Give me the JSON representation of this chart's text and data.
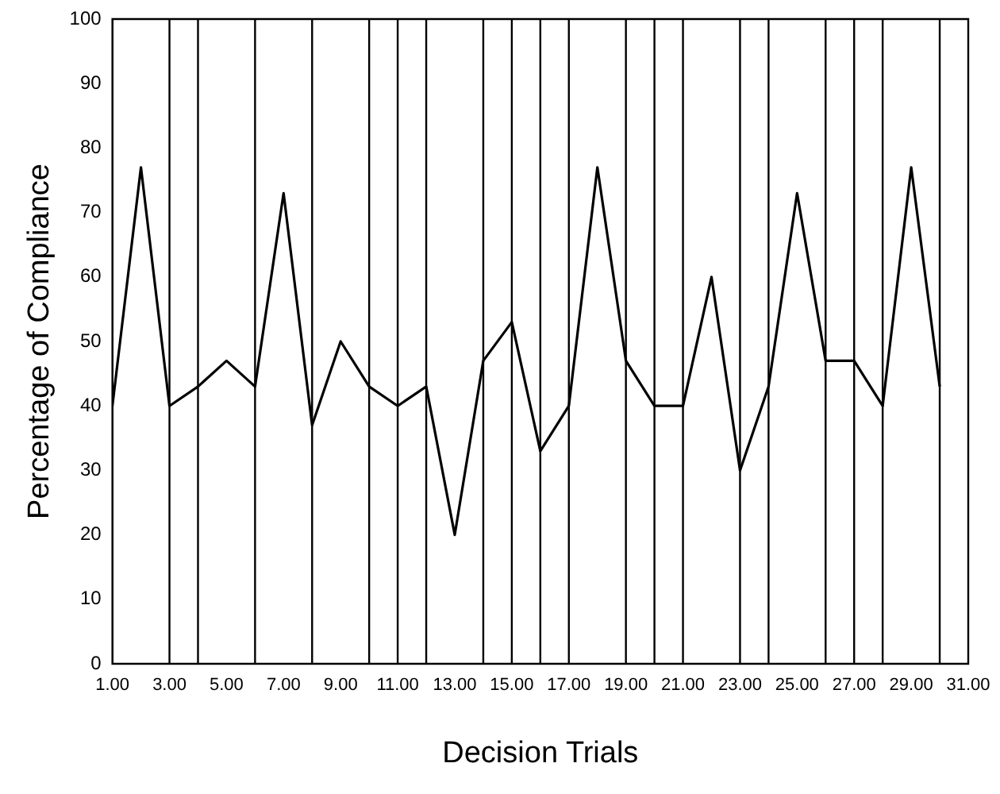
{
  "chart_data": {
    "type": "line",
    "xlabel": "Decision Trials",
    "ylabel": "Percentage of Compliance",
    "x": [
      1,
      2,
      3,
      4,
      5,
      6,
      7,
      8,
      9,
      10,
      11,
      12,
      13,
      14,
      15,
      16,
      17,
      18,
      19,
      20,
      21,
      22,
      23,
      24,
      25,
      26,
      27,
      28,
      29,
      30
    ],
    "series": [
      {
        "color": "#000000",
        "values": [
          40,
          77,
          40,
          43,
          47,
          43,
          73,
          37,
          50,
          43,
          40,
          43,
          20,
          47,
          53,
          33,
          40,
          77,
          47,
          40,
          40,
          60,
          30,
          43,
          73,
          47,
          47,
          40,
          77,
          43
        ]
      }
    ],
    "xlim": [
      1,
      31
    ],
    "xticks": [
      {
        "value": 1,
        "label": "1.00"
      },
      {
        "value": 3,
        "label": "3.00"
      },
      {
        "value": 5,
        "label": "5.00"
      },
      {
        "value": 7,
        "label": "7.00"
      },
      {
        "value": 9,
        "label": "9.00"
      },
      {
        "value": 11,
        "label": "11.00"
      },
      {
        "value": 13,
        "label": "13.00"
      },
      {
        "value": 15,
        "label": "15.00"
      },
      {
        "value": 17,
        "label": "17.00"
      },
      {
        "value": 19,
        "label": "19.00"
      },
      {
        "value": 21,
        "label": "21.00"
      },
      {
        "value": 23,
        "label": "23.00"
      },
      {
        "value": 25,
        "label": "25.00"
      },
      {
        "value": 27,
        "label": "27.00"
      },
      {
        "value": 29,
        "label": "29.00"
      },
      {
        "value": 31,
        "label": "31.00"
      }
    ],
    "ylim": [
      0,
      100
    ],
    "yticks": [
      0,
      10,
      20,
      30,
      40,
      50,
      60,
      70,
      80,
      90,
      100
    ],
    "ref_lines": [
      {
        "axis": "x",
        "value": 3,
        "color": "#000000"
      },
      {
        "axis": "x",
        "value": 4,
        "color": "#000000"
      },
      {
        "axis": "x",
        "value": 6,
        "color": "#000000"
      },
      {
        "axis": "x",
        "value": 8,
        "color": "#000000"
      },
      {
        "axis": "x",
        "value": 10,
        "color": "#000000"
      },
      {
        "axis": "x",
        "value": 11,
        "color": "#000000"
      },
      {
        "axis": "x",
        "value": 12,
        "color": "#000000"
      },
      {
        "axis": "x",
        "value": 14,
        "color": "#000000"
      },
      {
        "axis": "x",
        "value": 15,
        "color": "#000000"
      },
      {
        "axis": "x",
        "value": 16,
        "color": "#000000"
      },
      {
        "axis": "x",
        "value": 17,
        "color": "#000000"
      },
      {
        "axis": "x",
        "value": 19,
        "color": "#000000"
      },
      {
        "axis": "x",
        "value": 20,
        "color": "#000000"
      },
      {
        "axis": "x",
        "value": 21,
        "color": "#000000"
      },
      {
        "axis": "x",
        "value": 23,
        "color": "#000000"
      },
      {
        "axis": "x",
        "value": 24,
        "color": "#000000"
      },
      {
        "axis": "x",
        "value": 26,
        "color": "#000000"
      },
      {
        "axis": "x",
        "value": 27,
        "color": "#000000"
      },
      {
        "axis": "x",
        "value": 28,
        "color": "#000000"
      },
      {
        "axis": "x",
        "value": 30,
        "color": "#000000"
      }
    ],
    "grid": false,
    "legend": false,
    "marker": "none",
    "line_style": "solid"
  }
}
